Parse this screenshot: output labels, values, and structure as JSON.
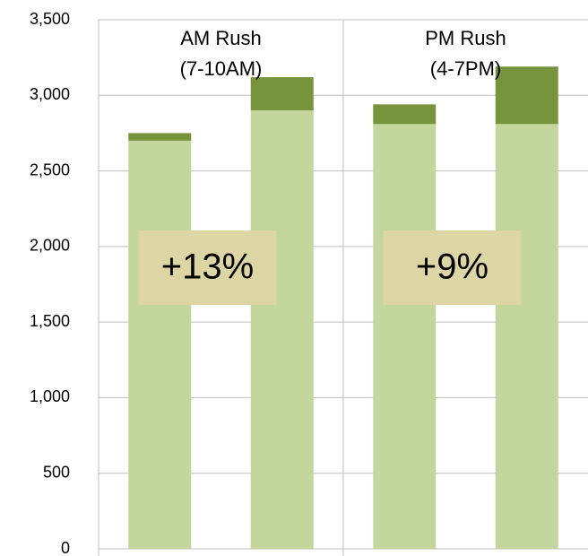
{
  "chart_data": {
    "type": "stacked_bar",
    "categories": [
      null,
      null,
      null,
      null
    ],
    "series": [
      {
        "color": "#c3d69b",
        "values": [
          2700,
          2900,
          2810,
          2810
        ]
      },
      {
        "color": "#77933c",
        "values": [
          50,
          220,
          130,
          380
        ]
      }
    ],
    "groups": [
      [
        "AM Rush",
        "(7-10AM)"
      ],
      [
        "PM Rush",
        "(4-7PM)"
      ]
    ],
    "annotations": [
      "+13%",
      "+9%"
    ],
    "annotation_color": "#ddd5a3",
    "ylim": [
      0,
      3500
    ],
    "yticks": [
      0,
      500,
      {
        "value": 1000,
        "label": "1,000"
      },
      {
        "value": 1500,
        "label": "1,500"
      },
      {
        "value": 2000,
        "label": "2,000"
      },
      {
        "value": 2500,
        "label": "2,500"
      },
      {
        "value": 3000,
        "label": "3,000"
      },
      {
        "value": 3500,
        "label": "3,500"
      }
    ],
    "grid": true
  }
}
